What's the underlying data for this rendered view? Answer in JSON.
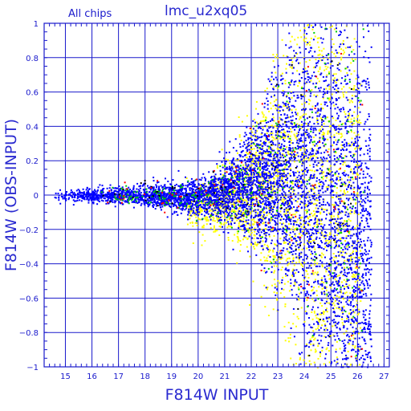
{
  "chart_data": {
    "type": "scatter",
    "title": "lmc_u2xq05",
    "subtitle": "All chips",
    "xlabel": "F814W INPUT",
    "ylabel": "F814W (OBS-INPUT)",
    "xlim": [
      14.2,
      27.2
    ],
    "ylim": [
      -1,
      1
    ],
    "grid": true,
    "x_ticks": [
      15,
      16,
      17,
      18,
      19,
      20,
      21,
      22,
      23,
      24,
      25,
      26,
      27
    ],
    "y_ticks": [
      -1,
      -0.8,
      -0.6,
      -0.4,
      -0.2,
      0,
      0.2,
      0.4,
      0.6,
      0.8,
      1
    ],
    "y_tick_labels": [
      "−1",
      "−0.8",
      "−0.6",
      "−0.4",
      "−0.2",
      "0",
      "0.2",
      "0.4",
      "0.6",
      "0.8",
      "1"
    ],
    "series": [
      {
        "color": "#0000ff",
        "role": "main dense locus"
      },
      {
        "color": "#ffff00",
        "role": "scattered outliers"
      },
      {
        "color": "#00cc00",
        "role": "sparse"
      },
      {
        "color": "#ff0000",
        "role": "sparse"
      },
      {
        "color": "#000000",
        "role": "sparse"
      }
    ],
    "density_trend": [
      {
        "x": 14.5,
        "center": 0.0,
        "spread": 0.02
      },
      {
        "x": 16,
        "center": 0.0,
        "spread": 0.02
      },
      {
        "x": 18,
        "center": 0.0,
        "spread": 0.03
      },
      {
        "x": 20,
        "center": -0.01,
        "spread": 0.05
      },
      {
        "x": 21,
        "center": 0.02,
        "spread": 0.08
      },
      {
        "x": 22,
        "center": 0.05,
        "spread": 0.15
      },
      {
        "x": 23,
        "center": 0.1,
        "spread": 0.28
      },
      {
        "x": 24,
        "center": 0.1,
        "spread": 0.45
      },
      {
        "x": 25,
        "center": -0.1,
        "spread": 0.7
      },
      {
        "x": 26,
        "center": -0.4,
        "spread": 0.6
      }
    ]
  },
  "colors": {
    "axis": "#1a1acc",
    "grid": "#1a1acc",
    "background": "#ffffff"
  }
}
